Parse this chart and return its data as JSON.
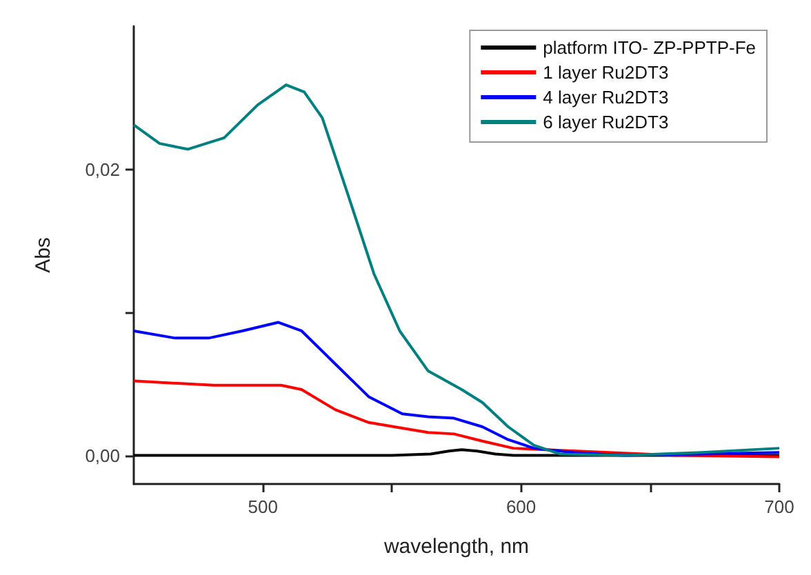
{
  "chart_data": {
    "type": "line",
    "xlabel": "wavelength, nm",
    "ylabel": "Abs",
    "xlim": [
      450,
      700
    ],
    "xticks": [
      500,
      {
        "value": 550,
        "label": null
      },
      600,
      {
        "value": 650,
        "label": null
      },
      700
    ],
    "ylim": [
      -0.002,
      0.03
    ],
    "yticks": [
      {
        "value": 0,
        "label": "0,00"
      },
      {
        "value": 0.01,
        "label": null
      },
      {
        "value": 0.02,
        "label": "0,02"
      }
    ],
    "legend": "top right",
    "grid": false,
    "marker": "none",
    "line_style": "solid",
    "series": [
      {
        "name": "platform ITO- ZP-PPTP-Fe",
        "color": "#000000",
        "x": [
          450,
          500,
          550,
          565,
          572,
          577,
          583,
          590,
          597,
          620,
          660,
          700
        ],
        "values": [
          0,
          0,
          0,
          0.0001,
          0.0003,
          0.0004,
          0.0003,
          0.0001,
          0,
          0,
          0,
          0
        ]
      },
      {
        "name": "1 layer Ru2DT3",
        "color": "#ff0000",
        "x": [
          450,
          481,
          507,
          515,
          528,
          541,
          554,
          564,
          574,
          585,
          597,
          660,
          700
        ],
        "values": [
          0.0052,
          0.0049,
          0.0049,
          0.0046,
          0.0032,
          0.0023,
          0.0019,
          0.0016,
          0.0015,
          0.001,
          0.0005,
          0,
          -0.0001
        ]
      },
      {
        "name": "4 layer Ru2DT3",
        "color": "#0000ff",
        "x": [
          450,
          466,
          479,
          492,
          506,
          515,
          528,
          541,
          554,
          564,
          574,
          585,
          595,
          605,
          620,
          640,
          700
        ],
        "values": [
          0.0087,
          0.0082,
          0.0082,
          0.0087,
          0.0093,
          0.0087,
          0.0064,
          0.0041,
          0.0029,
          0.0027,
          0.0026,
          0.002,
          0.0011,
          0.0005,
          0.0002,
          0,
          0.0002
        ]
      },
      {
        "name": "6 layer Ru2DT3",
        "color": "#008080",
        "x": [
          450,
          460,
          471,
          485,
          498,
          509,
          516,
          523,
          533,
          543,
          553,
          564,
          577,
          585,
          595,
          605,
          615,
          640,
          670,
          700
        ],
        "values": [
          0.0231,
          0.0218,
          0.0214,
          0.0222,
          0.0245,
          0.0259,
          0.0254,
          0.0236,
          0.0182,
          0.0127,
          0.0087,
          0.0059,
          0.0046,
          0.0037,
          0.002,
          0.0007,
          0.0001,
          0,
          0.0002,
          0.0005
        ]
      }
    ]
  }
}
